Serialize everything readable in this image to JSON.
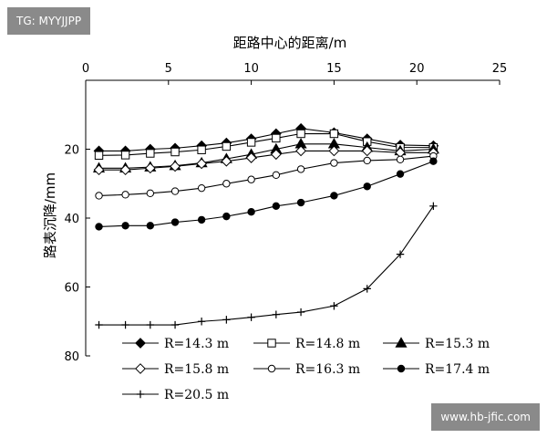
{
  "watermarks": {
    "top_left": "TG: MYYJJPP",
    "bottom_right": "www.hb-jfic.com"
  },
  "chart_data": {
    "type": "line",
    "title": "",
    "xlabel": "距路中心的距离/m",
    "ylabel": "路表沉降/mm",
    "x_axis_position": "top",
    "y_inverted": true,
    "xlim": [
      0,
      25
    ],
    "ylim": [
      0,
      80
    ],
    "x_ticks": [
      0,
      5,
      10,
      15,
      20,
      25
    ],
    "y_ticks": [
      20,
      40,
      60,
      80
    ],
    "grid": false,
    "legend_position": "bottom-inside",
    "series": [
      {
        "name": "R=14.3 m",
        "marker": "filled-diamond",
        "x": [
          0.8,
          2.4,
          3.9,
          5.4,
          7.0,
          8.5,
          10.0,
          11.5,
          13.0,
          15.0,
          17.0,
          19.0,
          21.0
        ],
        "y": [
          20.5,
          20.5,
          20.0,
          19.7,
          19.0,
          18.2,
          17.0,
          15.5,
          14.0,
          15.2,
          17.0,
          18.8,
          19.0
        ]
      },
      {
        "name": "R=14.8 m",
        "marker": "open-square",
        "x": [
          0.8,
          2.4,
          3.9,
          5.4,
          7.0,
          8.5,
          10.0,
          11.5,
          13.0,
          15.0,
          17.0,
          19.0,
          21.0
        ],
        "y": [
          21.8,
          21.7,
          21.2,
          20.8,
          20.2,
          19.2,
          18.0,
          16.8,
          15.5,
          15.5,
          17.8,
          19.5,
          19.5
        ]
      },
      {
        "name": "R=15.3 m",
        "marker": "filled-triangle",
        "x": [
          0.8,
          2.4,
          3.9,
          5.4,
          7.0,
          8.5,
          10.0,
          11.5,
          13.0,
          15.0,
          17.0,
          19.0,
          21.0
        ],
        "y": [
          25.5,
          25.5,
          25.2,
          24.8,
          24.0,
          22.8,
          21.5,
          20.0,
          18.5,
          18.5,
          19.5,
          20.5,
          20.0
        ]
      },
      {
        "name": "R=15.8 m",
        "marker": "open-diamond",
        "x": [
          0.8,
          2.4,
          3.9,
          5.4,
          7.0,
          8.5,
          10.0,
          11.5,
          13.0,
          15.0,
          17.0,
          19.0,
          21.0
        ],
        "y": [
          26.0,
          26.0,
          25.5,
          25.0,
          24.2,
          23.5,
          22.5,
          21.5,
          20.5,
          20.5,
          20.5,
          21.0,
          21.0
        ]
      },
      {
        "name": "R=16.3 m",
        "marker": "open-circle",
        "x": [
          0.8,
          2.4,
          3.9,
          5.4,
          7.0,
          8.5,
          10.0,
          11.5,
          13.0,
          15.0,
          17.0,
          19.0,
          21.0
        ],
        "y": [
          33.5,
          33.2,
          32.8,
          32.2,
          31.3,
          30.0,
          28.8,
          27.5,
          25.8,
          24.0,
          23.3,
          23.0,
          22.0
        ]
      },
      {
        "name": "R=17.4 m",
        "marker": "filled-circle",
        "x": [
          0.8,
          2.4,
          3.9,
          5.4,
          7.0,
          8.5,
          10.0,
          11.5,
          13.0,
          15.0,
          17.0,
          19.0,
          21.0
        ],
        "y": [
          42.5,
          42.2,
          42.2,
          41.2,
          40.5,
          39.5,
          38.2,
          36.5,
          35.5,
          33.5,
          30.8,
          27.2,
          23.5
        ]
      },
      {
        "name": "R=20.5 m",
        "marker": "plus",
        "x": [
          0.8,
          2.4,
          3.9,
          5.4,
          7.0,
          8.5,
          10.0,
          11.5,
          13.0,
          15.0,
          17.0,
          19.0,
          21.0
        ],
        "y": [
          71.0,
          71.0,
          71.0,
          71.0,
          70.0,
          69.5,
          68.8,
          68.0,
          67.3,
          65.5,
          60.5,
          50.5,
          36.5
        ]
      }
    ]
  }
}
